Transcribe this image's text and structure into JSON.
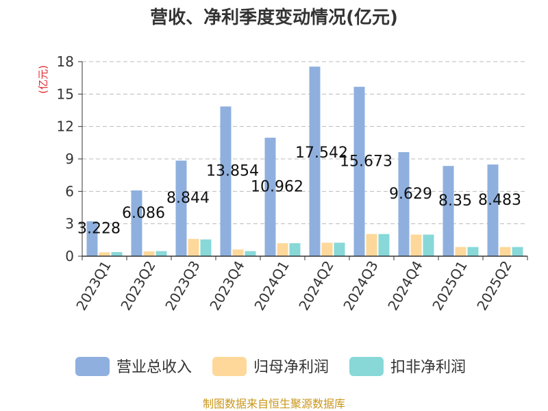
{
  "chart_data": {
    "type": "bar",
    "title": "营收、净利季度变动情况(亿元)",
    "ylabel": "(亿元)",
    "ylim": [
      0,
      18
    ],
    "yticks": [
      0,
      3,
      6,
      9,
      12,
      15,
      18
    ],
    "grid": true,
    "legend_position": "bottom",
    "categories": [
      "2023Q1",
      "2023Q2",
      "2023Q3",
      "2023Q4",
      "2024Q1",
      "2024Q2",
      "2024Q3",
      "2024Q4",
      "2025Q1",
      "2025Q2"
    ],
    "series": [
      {
        "name": "营业总收入",
        "color": "#8fb0de",
        "values": [
          3.228,
          6.086,
          8.844,
          13.854,
          10.962,
          17.542,
          15.673,
          9.629,
          8.35,
          8.483
        ],
        "labels": [
          "3.228",
          "6.086",
          "8.844",
          "13.854",
          "10.962",
          "17.542",
          "15.673",
          "9.629",
          "8.35",
          "8.483"
        ]
      },
      {
        "name": "归母净利润",
        "color": "#fdd89a",
        "values": [
          0.36,
          0.45,
          1.6,
          0.62,
          1.2,
          1.25,
          2.05,
          2.0,
          0.85,
          0.85
        ]
      },
      {
        "name": "扣非净利润",
        "color": "#88d8d8",
        "values": [
          0.38,
          0.47,
          1.55,
          0.47,
          1.2,
          1.25,
          2.05,
          2.0,
          0.85,
          0.85
        ]
      }
    ],
    "source": "制图数据来自恒生聚源数据库"
  }
}
